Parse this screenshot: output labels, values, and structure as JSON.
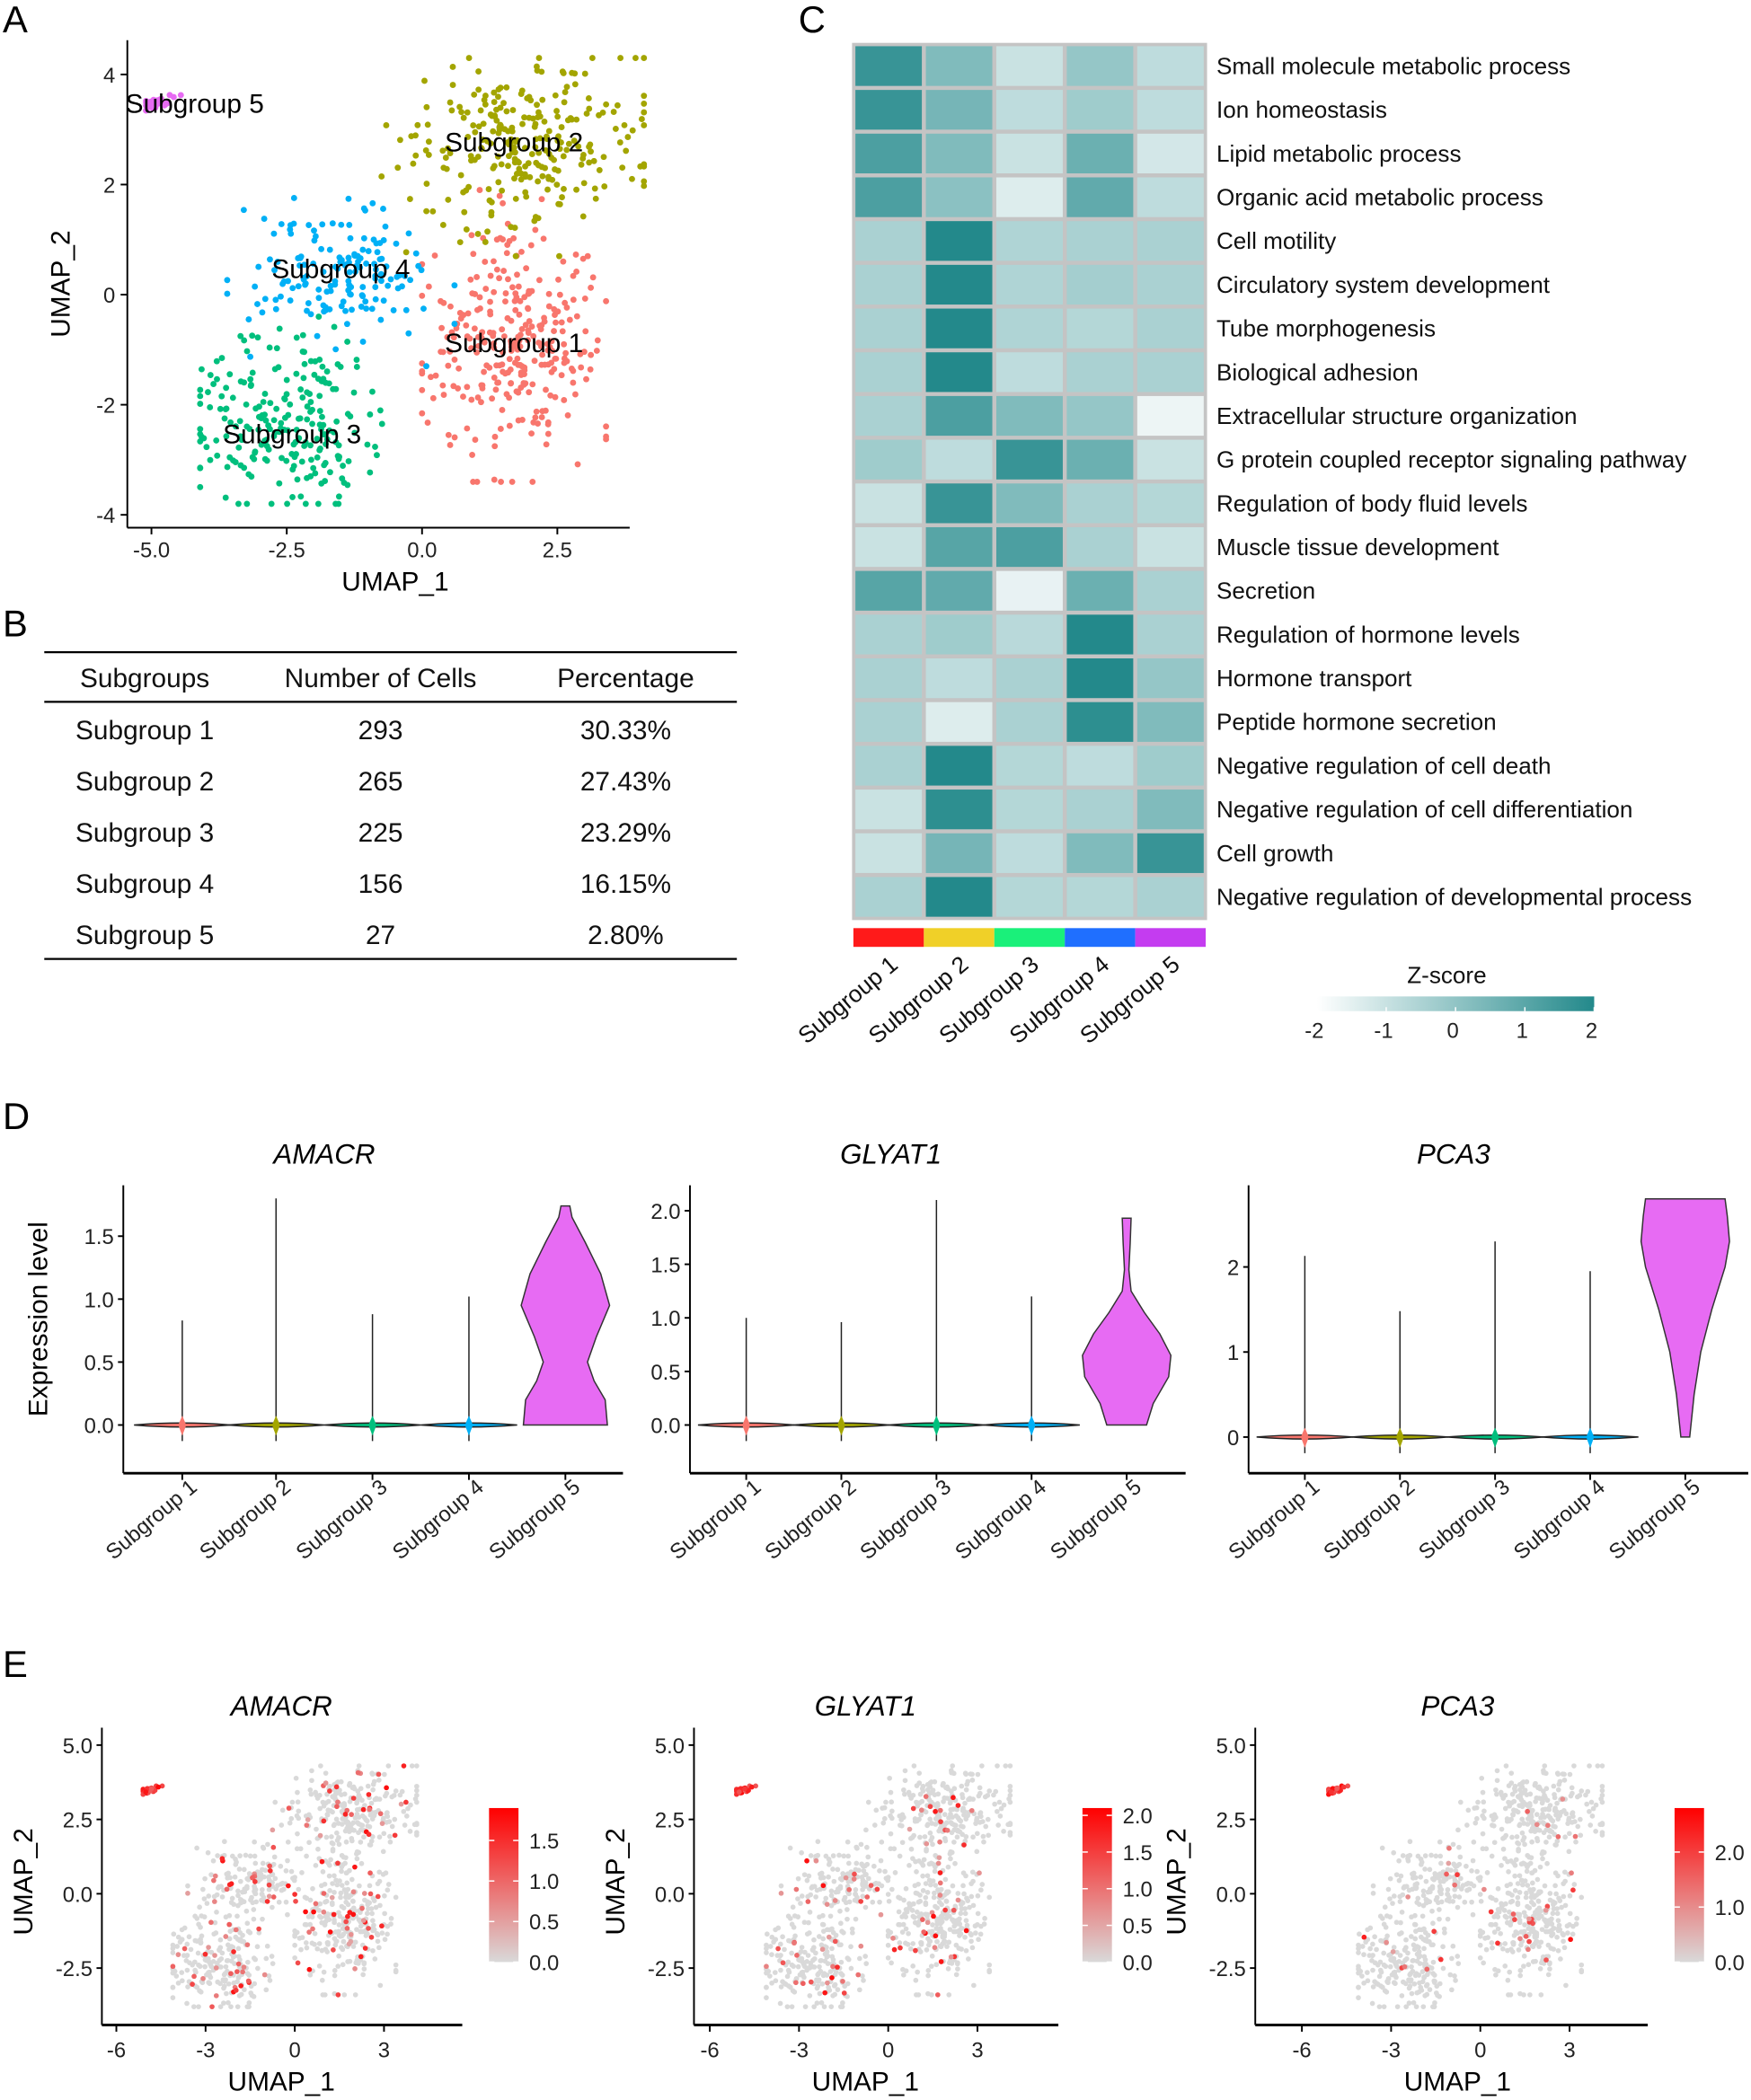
{
  "panel_labels": [
    "A",
    "B",
    "C",
    "D",
    "E"
  ],
  "colors": {
    "subgroups": [
      "#F8766D",
      "#A3A500",
      "#00BF7D",
      "#00B0F6",
      "#E76BF3"
    ],
    "table_text": [
      "#F03C24",
      "#D4A020",
      "#2ECC40",
      "#1E6FE8",
      "#F06BF0"
    ],
    "heat_bar": [
      "#FF1A1A",
      "#F0D028",
      "#1AF07A",
      "#1F6FFF",
      "#C43CF0"
    ],
    "heat_low": "#F2F8F8",
    "heat_high": "#23898B",
    "feature_low": "#D9D9D9",
    "feature_high": "#FF0000"
  },
  "chart_data": [
    {
      "type": "scatter",
      "panel": "A",
      "xlabel": "UMAP_1",
      "ylabel": "UMAP_2",
      "xlim": [
        -5.5,
        4.5
      ],
      "ylim": [
        -4.2,
        4.6
      ],
      "x_ticks": [
        {
          "value": -5,
          "label": "-5.0"
        },
        {
          "value": -2.5,
          "label": "-2.5"
        },
        {
          "value": 0,
          "label": "0.0"
        },
        {
          "value": 2.5,
          "label": "2.5"
        }
      ],
      "y_ticks": [
        {
          "value": 4,
          "label": "4"
        },
        {
          "value": 2,
          "label": "2"
        },
        {
          "value": 0,
          "label": "0"
        },
        {
          "value": -2,
          "label": "-2"
        },
        {
          "value": -4,
          "label": "-4"
        }
      ],
      "groups": [
        {
          "name": "Subgroup 1",
          "n": 293,
          "label_pos": [
            1.7,
            -0.9
          ]
        },
        {
          "name": "Subgroup 2",
          "n": 265,
          "label_pos": [
            1.7,
            2.75
          ]
        },
        {
          "name": "Subgroup 3",
          "n": 225,
          "label_pos": [
            -2.4,
            -2.55
          ]
        },
        {
          "name": "Subgroup 4",
          "n": 156,
          "label_pos": [
            -1.5,
            0.45
          ]
        },
        {
          "name": "Subgroup 5",
          "n": 27,
          "label_pos": [
            -4.2,
            3.45
          ]
        }
      ]
    },
    {
      "type": "table",
      "panel": "B",
      "columns": [
        "Subgroups",
        "Number of Cells",
        "Percentage"
      ],
      "rows": [
        [
          "Subgroup  1",
          "293",
          "30.33%"
        ],
        [
          "Subgroup  2",
          "265",
          "27.43%"
        ],
        [
          "Subgroup  3",
          "225",
          "23.29%"
        ],
        [
          "Subgroup  4",
          "156",
          "16.15%"
        ],
        [
          "Subgroup  5",
          "27",
          "2.80%"
        ]
      ]
    },
    {
      "type": "heatmap",
      "panel": "C",
      "columns": [
        "Subgroup 1",
        "Subgroup 2",
        "Subgroup 3",
        "Subgroup 4",
        "Subgroup 5"
      ],
      "rows": [
        "Small molecule metabolic process",
        "Ion homeostasis",
        "Lipid metabolic process",
        "Organic acid metabolic process",
        "Cell motility",
        "Circulatory system development",
        "Tube morphogenesis",
        "Biological adhesion",
        "Extracellular structure organization",
        "G protein coupled receptor signaling pathway",
        "Regulation of body fluid levels",
        "Muscle tissue development",
        "Secretion",
        "Regulation of hormone levels",
        "Hormone transport",
        "Peptide hormone secretion",
        "Negative regulation of cell death",
        "Negative regulation of cell differentiation",
        "Cell growth",
        "Negative regulation of developmental process"
      ],
      "values": [
        [
          1.6,
          0.2,
          -1.2,
          -0.2,
          -1.0
        ],
        [
          1.6,
          0.4,
          -1.0,
          -0.4,
          -1.0
        ],
        [
          1.2,
          0.2,
          -1.2,
          0.6,
          -1.4
        ],
        [
          1.2,
          0.0,
          -1.6,
          0.8,
          -1.0
        ],
        [
          -0.6,
          2.0,
          -0.7,
          -0.6,
          -0.6
        ],
        [
          -0.6,
          2.0,
          -0.7,
          -0.5,
          -0.6
        ],
        [
          -0.6,
          2.0,
          -0.7,
          -0.8,
          -0.6
        ],
        [
          -0.6,
          2.0,
          -1.0,
          -0.6,
          -0.6
        ],
        [
          -0.6,
          1.2,
          0.2,
          -0.2,
          -1.9
        ],
        [
          -0.4,
          -1.0,
          1.6,
          0.6,
          -1.2
        ],
        [
          -1.2,
          1.6,
          0.2,
          -0.6,
          -0.8
        ],
        [
          -1.2,
          1.0,
          1.2,
          -0.6,
          -1.2
        ],
        [
          1.0,
          0.8,
          -1.8,
          0.6,
          -0.6
        ],
        [
          -0.6,
          -0.4,
          -0.9,
          2.0,
          -0.6
        ],
        [
          -0.6,
          -1.0,
          -0.6,
          2.0,
          -0.2
        ],
        [
          -0.6,
          -1.6,
          -0.6,
          1.8,
          0.2
        ],
        [
          -0.6,
          2.0,
          -0.8,
          -1.0,
          -0.4
        ],
        [
          -1.2,
          1.8,
          -0.8,
          -0.6,
          0.2
        ],
        [
          -1.2,
          0.4,
          -1.0,
          0.2,
          1.6
        ],
        [
          -0.6,
          2.0,
          -0.8,
          -0.8,
          -0.6
        ]
      ],
      "legend_title": "Z-score",
      "legend_ticks": [
        "-2",
        "-1",
        "0",
        "1",
        "2"
      ],
      "range": [
        -2,
        2
      ]
    },
    {
      "type": "violin",
      "panel": "D",
      "title": "AMACR",
      "ylabel": "Expression level",
      "categories": [
        "Subgroup 1",
        "Subgroup 2",
        "Subgroup 3",
        "Subgroup 4",
        "Subgroup 5"
      ],
      "y_ticks": [
        {
          "value": 0,
          "label": "0.0"
        },
        {
          "value": 0.5,
          "label": "0.5"
        },
        {
          "value": 1,
          "label": "1.0"
        },
        {
          "value": 1.5,
          "label": "1.5"
        }
      ],
      "max_values": [
        0.83,
        1.8,
        0.88,
        1.02,
        1.74
      ],
      "subgroup5_density": [
        [
          0,
          0.95
        ],
        [
          0.2,
          0.9
        ],
        [
          0.35,
          0.65
        ],
        [
          0.5,
          0.5
        ],
        [
          0.7,
          0.7
        ],
        [
          0.95,
          1.0
        ],
        [
          1.2,
          0.8
        ],
        [
          1.45,
          0.45
        ],
        [
          1.65,
          0.15
        ],
        [
          1.74,
          0.1
        ]
      ]
    },
    {
      "type": "violin",
      "panel": "D",
      "title": "GLYAT1",
      "categories": [
        "Subgroup 1",
        "Subgroup 2",
        "Subgroup 3",
        "Subgroup 4",
        "Subgroup 5"
      ],
      "y_ticks": [
        {
          "value": 0,
          "label": "0.0"
        },
        {
          "value": 0.5,
          "label": "0.5"
        },
        {
          "value": 1,
          "label": "1.0"
        },
        {
          "value": 1.5,
          "label": "1.5"
        },
        {
          "value": 2,
          "label": "2.0"
        }
      ],
      "max_values": [
        1.0,
        0.96,
        2.1,
        1.2,
        1.93
      ],
      "subgroup5_density": [
        [
          0,
          0.45
        ],
        [
          0.2,
          0.6
        ],
        [
          0.45,
          0.95
        ],
        [
          0.65,
          1.0
        ],
        [
          0.85,
          0.75
        ],
        [
          1.05,
          0.4
        ],
        [
          1.25,
          0.1
        ],
        [
          1.45,
          0.05
        ],
        [
          1.7,
          0.08
        ],
        [
          1.93,
          0.1
        ]
      ]
    },
    {
      "type": "violin",
      "panel": "D",
      "title": "PCA3",
      "categories": [
        "Subgroup 1",
        "Subgroup 2",
        "Subgroup 3",
        "Subgroup 4",
        "Subgroup 5"
      ],
      "y_ticks": [
        {
          "value": 0,
          "label": "0"
        },
        {
          "value": 1,
          "label": "1"
        },
        {
          "value": 2,
          "label": "2"
        }
      ],
      "max_values": [
        2.13,
        1.48,
        2.3,
        1.95,
        2.8
      ],
      "subgroup5_density": [
        [
          0,
          0.1
        ],
        [
          0.5,
          0.2
        ],
        [
          1.0,
          0.35
        ],
        [
          1.5,
          0.6
        ],
        [
          2.0,
          0.9
        ],
        [
          2.3,
          1.0
        ],
        [
          2.6,
          0.95
        ],
        [
          2.8,
          0.9
        ]
      ]
    },
    {
      "type": "scatter",
      "panel": "E",
      "title": "AMACR",
      "xlabel": "UMAP_1",
      "ylabel": "UMAP_2",
      "x_ticks": [
        {
          "value": -6,
          "label": "-6"
        },
        {
          "value": -3,
          "label": "-3"
        },
        {
          "value": 0,
          "label": "0"
        },
        {
          "value": 3,
          "label": "3"
        }
      ],
      "y_ticks": [
        {
          "value": 5,
          "label": "5.0"
        },
        {
          "value": 2.5,
          "label": "2.5"
        },
        {
          "value": 0,
          "label": "0.0"
        },
        {
          "value": -2.5,
          "label": "-2.5"
        }
      ],
      "color_max": 1.9,
      "colorbar_ticks": [
        {
          "value": 1.5,
          "label": "1.5"
        },
        {
          "value": 1.0,
          "label": "1.0"
        },
        {
          "value": 0.5,
          "label": "0.5"
        },
        {
          "value": 0,
          "label": "0.0"
        }
      ]
    },
    {
      "type": "scatter",
      "panel": "E",
      "title": "GLYAT1",
      "xlabel": "UMAP_1",
      "ylabel": "UMAP_2",
      "x_ticks": [
        {
          "value": -6,
          "label": "-6"
        },
        {
          "value": -3,
          "label": "-3"
        },
        {
          "value": 0,
          "label": "0"
        },
        {
          "value": 3,
          "label": "3"
        }
      ],
      "y_ticks": [
        {
          "value": 5,
          "label": "5.0"
        },
        {
          "value": 2.5,
          "label": "2.5"
        },
        {
          "value": 0,
          "label": "0.0"
        },
        {
          "value": -2.5,
          "label": "-2.5"
        }
      ],
      "color_max": 2.1,
      "colorbar_ticks": [
        {
          "value": 2.0,
          "label": "2.0"
        },
        {
          "value": 1.5,
          "label": "1.5"
        },
        {
          "value": 1.0,
          "label": "1.0"
        },
        {
          "value": 0.5,
          "label": "0.5"
        },
        {
          "value": 0,
          "label": "0.0"
        }
      ]
    },
    {
      "type": "scatter",
      "panel": "E",
      "title": "PCA3",
      "xlabel": "UMAP_1",
      "ylabel": "UMAP_2",
      "x_ticks": [
        {
          "value": -6,
          "label": "-6"
        },
        {
          "value": -3,
          "label": "-3"
        },
        {
          "value": 0,
          "label": "0"
        },
        {
          "value": 3,
          "label": "3"
        }
      ],
      "y_ticks": [
        {
          "value": 5,
          "label": "5.0"
        },
        {
          "value": 2.5,
          "label": "2.5"
        },
        {
          "value": 0,
          "label": "0.0"
        },
        {
          "value": -2.5,
          "label": "-2.5"
        }
      ],
      "color_max": 2.8,
      "colorbar_ticks": [
        {
          "value": 2.0,
          "label": "2.0"
        },
        {
          "value": 1.0,
          "label": "1.0"
        },
        {
          "value": 0,
          "label": "0.0"
        }
      ]
    }
  ]
}
